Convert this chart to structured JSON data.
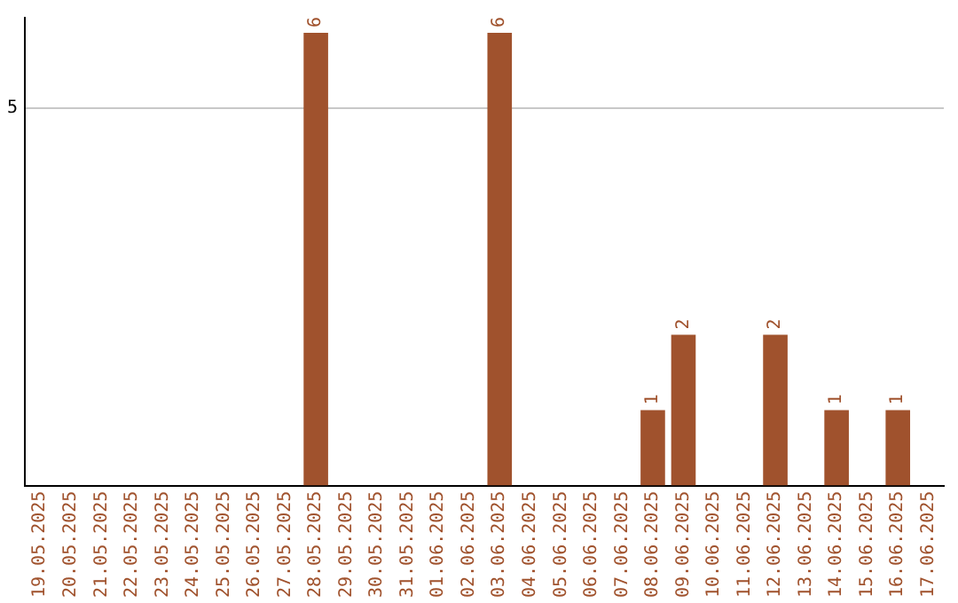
{
  "chart_data": {
    "type": "bar",
    "categories": [
      "19.05.2025",
      "20.05.2025",
      "21.05.2025",
      "22.05.2025",
      "23.05.2025",
      "24.05.2025",
      "25.05.2025",
      "26.05.2025",
      "27.05.2025",
      "28.05.2025",
      "29.05.2025",
      "30.05.2025",
      "31.05.2025",
      "01.06.2025",
      "02.06.2025",
      "03.06.2025",
      "04.06.2025",
      "05.06.2025",
      "06.06.2025",
      "07.06.2025",
      "08.06.2025",
      "09.06.2025",
      "10.06.2025",
      "11.06.2025",
      "12.06.2025",
      "13.06.2025",
      "14.06.2025",
      "15.06.2025",
      "16.06.2025",
      "17.06.2025"
    ],
    "values": [
      0,
      0,
      0,
      0,
      0,
      0,
      0,
      0,
      0,
      6,
      0,
      0,
      0,
      0,
      0,
      6,
      0,
      0,
      0,
      0,
      1,
      2,
      0,
      0,
      2,
      0,
      1,
      0,
      1,
      0
    ],
    "value_labels": [
      null,
      null,
      null,
      null,
      null,
      null,
      null,
      null,
      null,
      "6",
      null,
      null,
      null,
      null,
      null,
      "6",
      null,
      null,
      null,
      null,
      "1",
      "2",
      null,
      null,
      "2",
      null,
      "1",
      null,
      "1",
      null
    ],
    "color": "#a0522d",
    "ylim": [
      0,
      6.2
    ],
    "yticks": [
      5
    ],
    "grid": "y",
    "legend": false
  }
}
